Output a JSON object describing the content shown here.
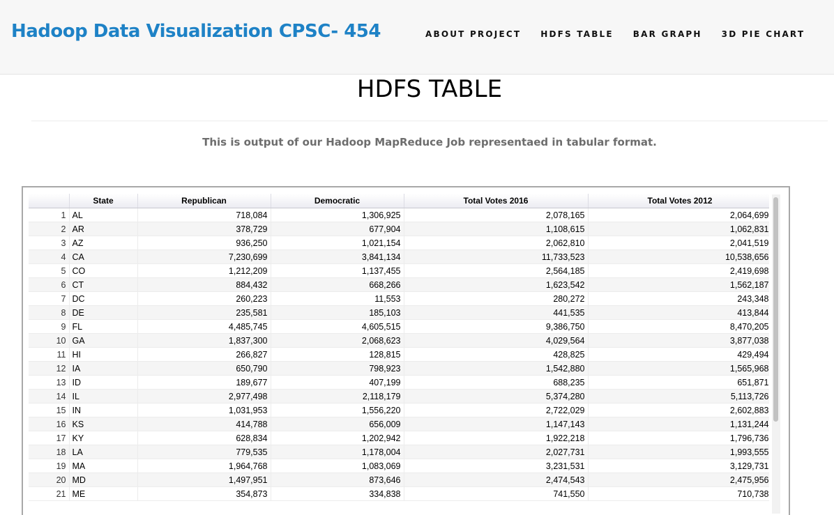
{
  "header": {
    "brand": "Hadoop Data Visualization CPSC- 454",
    "nav": [
      "ABOUT PROJECT",
      "HDFS TABLE",
      "BAR GRAPH",
      "3D PIE CHART"
    ]
  },
  "page": {
    "title": "HDFS TABLE",
    "subtitle": "This is output of our Hadoop MapReduce Job representaed in tabular format."
  },
  "table": {
    "columns": [
      "",
      "State",
      "Republican",
      "Democratic",
      "Total Votes 2016",
      "Total Votes 2012"
    ],
    "rows": [
      [
        "1",
        "AL",
        "718,084",
        "1,306,925",
        "2,078,165",
        "2,064,699"
      ],
      [
        "2",
        "AR",
        "378,729",
        "677,904",
        "1,108,615",
        "1,062,831"
      ],
      [
        "3",
        "AZ",
        "936,250",
        "1,021,154",
        "2,062,810",
        "2,041,519"
      ],
      [
        "4",
        "CA",
        "7,230,699",
        "3,841,134",
        "11,733,523",
        "10,538,656"
      ],
      [
        "5",
        "CO",
        "1,212,209",
        "1,137,455",
        "2,564,185",
        "2,419,698"
      ],
      [
        "6",
        "CT",
        "884,432",
        "668,266",
        "1,623,542",
        "1,562,187"
      ],
      [
        "7",
        "DC",
        "260,223",
        "11,553",
        "280,272",
        "243,348"
      ],
      [
        "8",
        "DE",
        "235,581",
        "185,103",
        "441,535",
        "413,844"
      ],
      [
        "9",
        "FL",
        "4,485,745",
        "4,605,515",
        "9,386,750",
        "8,470,205"
      ],
      [
        "10",
        "GA",
        "1,837,300",
        "2,068,623",
        "4,029,564",
        "3,877,038"
      ],
      [
        "11",
        "HI",
        "266,827",
        "128,815",
        "428,825",
        "429,494"
      ],
      [
        "12",
        "IA",
        "650,790",
        "798,923",
        "1,542,880",
        "1,565,968"
      ],
      [
        "13",
        "ID",
        "189,677",
        "407,199",
        "688,235",
        "651,871"
      ],
      [
        "14",
        "IL",
        "2,977,498",
        "2,118,179",
        "5,374,280",
        "5,113,726"
      ],
      [
        "15",
        "IN",
        "1,031,953",
        "1,556,220",
        "2,722,029",
        "2,602,883"
      ],
      [
        "16",
        "KS",
        "414,788",
        "656,009",
        "1,147,143",
        "1,131,244"
      ],
      [
        "17",
        "KY",
        "628,834",
        "1,202,942",
        "1,922,218",
        "1,796,736"
      ],
      [
        "18",
        "LA",
        "779,535",
        "1,178,004",
        "2,027,731",
        "1,993,555"
      ],
      [
        "19",
        "MA",
        "1,964,768",
        "1,083,069",
        "3,231,531",
        "3,129,731"
      ],
      [
        "20",
        "MD",
        "1,497,951",
        "873,646",
        "2,474,543",
        "2,475,956"
      ],
      [
        "21",
        "ME",
        "354,873",
        "334,838",
        "741,550",
        "710,738"
      ]
    ]
  },
  "colors": {
    "brand": "#1e82c6",
    "header_bg": "#f7f7f7",
    "alt_row": "#f5f5f5"
  }
}
